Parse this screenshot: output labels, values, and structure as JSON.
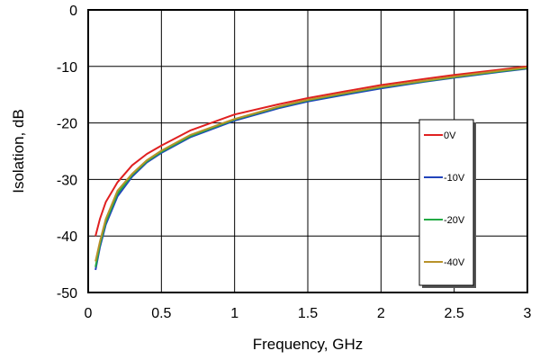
{
  "chart_data": {
    "type": "line",
    "xlabel": "Frequency, GHz",
    "ylabel": "Isolation, dB",
    "xlim": [
      0,
      3
    ],
    "ylim": [
      -50,
      0
    ],
    "x_ticks": [
      "0",
      "0.5",
      "1",
      "1.5",
      "2",
      "2.5",
      "3"
    ],
    "y_ticks": [
      "0",
      "-10",
      "-20",
      "-30",
      "-40",
      "-50"
    ],
    "grid": true,
    "legend_position": "right",
    "series": [
      {
        "name": "0V",
        "color": "#e02020",
        "x": [
          0.05,
          0.08,
          0.12,
          0.2,
          0.3,
          0.4,
          0.5,
          0.7,
          1.0,
          1.3,
          1.5,
          1.8,
          2.0,
          2.3,
          2.5,
          2.8,
          3.0
        ],
        "y": [
          -40,
          -37,
          -34,
          -30.5,
          -27.5,
          -25.5,
          -24,
          -21.3,
          -18.5,
          -16.7,
          -15.6,
          -14.2,
          -13.3,
          -12.2,
          -11.5,
          -10.6,
          -10
        ]
      },
      {
        "name": "-10V",
        "color": "#2244bb",
        "x": [
          0.05,
          0.08,
          0.12,
          0.2,
          0.3,
          0.4,
          0.5,
          0.7,
          1.0,
          1.3,
          1.5,
          1.8,
          2.0,
          2.3,
          2.5,
          2.8,
          3.0
        ],
        "y": [
          -46,
          -42,
          -38,
          -33,
          -29.5,
          -27,
          -25.3,
          -22.5,
          -19.6,
          -17.4,
          -16.2,
          -14.8,
          -13.9,
          -12.7,
          -12,
          -11,
          -10.4
        ]
      },
      {
        "name": "-20V",
        "color": "#22aa44",
        "x": [
          0.05,
          0.08,
          0.12,
          0.2,
          0.3,
          0.4,
          0.5,
          0.7,
          1.0,
          1.3,
          1.5,
          1.8,
          2.0,
          2.3,
          2.5,
          2.8,
          3.0
        ],
        "y": [
          -45.5,
          -41.5,
          -37.5,
          -32.5,
          -29.2,
          -26.8,
          -25.1,
          -22.3,
          -19.4,
          -17.2,
          -16,
          -14.6,
          -13.7,
          -12.6,
          -11.9,
          -10.9,
          -10.3
        ]
      },
      {
        "name": "-40V",
        "color": "#b8922a",
        "x": [
          0.05,
          0.08,
          0.12,
          0.2,
          0.3,
          0.4,
          0.5,
          0.7,
          1.0,
          1.3,
          1.5,
          1.8,
          2.0,
          2.3,
          2.5,
          2.8,
          3.0
        ],
        "y": [
          -44.5,
          -41,
          -37,
          -32,
          -29,
          -26.6,
          -24.9,
          -22.1,
          -19.3,
          -17.1,
          -15.9,
          -14.5,
          -13.6,
          -12.5,
          -11.8,
          -10.8,
          -10.2
        ]
      }
    ]
  }
}
